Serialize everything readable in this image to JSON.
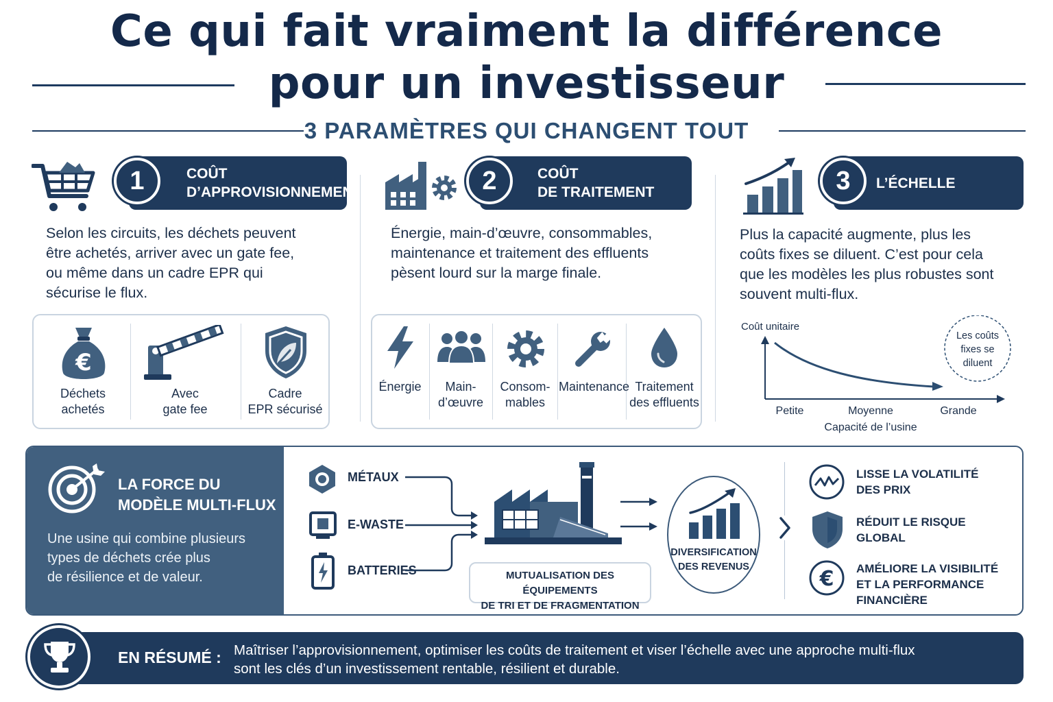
{
  "header": {
    "title_line1": "Ce qui fait vraiment la différence",
    "title_line2": "pour un investisseur",
    "subtitle": "3 PARAMÈTRES QUI CHANGENT TOUT"
  },
  "params": [
    {
      "number": "1",
      "title_line1": "COÛT",
      "title_line2": "D’APPROVISIONNEMENT",
      "description": [
        "Selon les circuits, les déchets peuvent",
        "être achetés, arriver avec un gate fee,",
        "ou même dans un cadre EPR qui",
        "sécurise le flux."
      ],
      "items": [
        {
          "line1": "Déchets",
          "line2": "achetés",
          "icon": "money-bag-euro-icon"
        },
        {
          "line1": "Avec",
          "line2": "gate fee",
          "icon": "barrier-gate-icon"
        },
        {
          "line1": "Cadre",
          "line2": "EPR sécurisé",
          "icon": "shield-leaf-icon"
        }
      ]
    },
    {
      "number": "2",
      "title_line1": "COÛT",
      "title_line2": "DE TRAITEMENT",
      "description": [
        "Énergie, main-d’œuvre, consommables,",
        "maintenance et traitement des effluents",
        "pèsent lourd sur la marge finale."
      ],
      "items": [
        {
          "line1": "Énergie",
          "line2": "",
          "icon": "lightning-icon"
        },
        {
          "line1": "Main-",
          "line2": "d’œuvre",
          "icon": "people-icon"
        },
        {
          "line1": "Consom-",
          "line2": "mables",
          "icon": "gear-icon"
        },
        {
          "line1": "Maintenance",
          "line2": "",
          "icon": "wrench-icon"
        },
        {
          "line1": "Traitement",
          "line2": "des effluents",
          "icon": "water-drop-icon"
        }
      ]
    },
    {
      "number": "3",
      "title_line1": "L’ÉCHELLE",
      "description": [
        "Plus la capacité augmente, plus les",
        "coûts fixes se diluent. C’est pour cela",
        "que les modèles les plus robustes sont",
        "souvent multi-flux."
      ]
    }
  ],
  "chart_data": {
    "type": "line",
    "ylabel": "Coût unitaire",
    "xlabel": "Capacité de l’usine",
    "categories": [
      "Petite",
      "Moyenne",
      "Grande"
    ],
    "trend": "decreasing",
    "annotation": [
      "Les coûts",
      "fixes se",
      "diluent"
    ]
  },
  "multiflux": {
    "title_line1": "LA FORCE DU",
    "title_line2": "MODÈLE MULTI-FLUX",
    "description": [
      "Une usine qui combine plusieurs",
      "types de déchets crée plus",
      "de résilience et de valeur."
    ],
    "sources": [
      {
        "label": "MÉTAUX",
        "icon": "metal-nut-icon"
      },
      {
        "label": "E-WASTE",
        "icon": "chip-icon"
      },
      {
        "label": "BATTERIES",
        "icon": "battery-icon"
      }
    ],
    "mutualisation": [
      "MUTUALISATION DES ÉQUIPEMENTS",
      "DE TRI ET DE FRAGMENTATION"
    ],
    "diversification": [
      "DIVERSIFICATION",
      "DES REVENUS"
    ],
    "benefits": [
      {
        "line1": "LISSE LA VOLATILITÉ",
        "line2": "DES PRIX",
        "line3": "",
        "icon": "pulse-icon"
      },
      {
        "line1": "RÉDUIT LE RISQUE",
        "line2": "GLOBAL",
        "line3": "",
        "icon": "shield-icon"
      },
      {
        "line1": "AMÉLIORE LA VISIBILITÉ",
        "line2": "ET LA PERFORMANCE",
        "line3": "FINANCIÈRE",
        "icon": "euro-icon"
      }
    ]
  },
  "summary": {
    "label": "EN RÉSUMÉ :",
    "line1": "Maîtriser l’approvisionnement, optimiser les coûts de traitement et viser l’échelle avec une approche multi-flux",
    "line2": "sont les clés d’un investissement rentable, résilient et durable."
  },
  "colors": {
    "navy": "#1f3a5c",
    "slate": "#41607f",
    "border": "#c9d4e0"
  }
}
